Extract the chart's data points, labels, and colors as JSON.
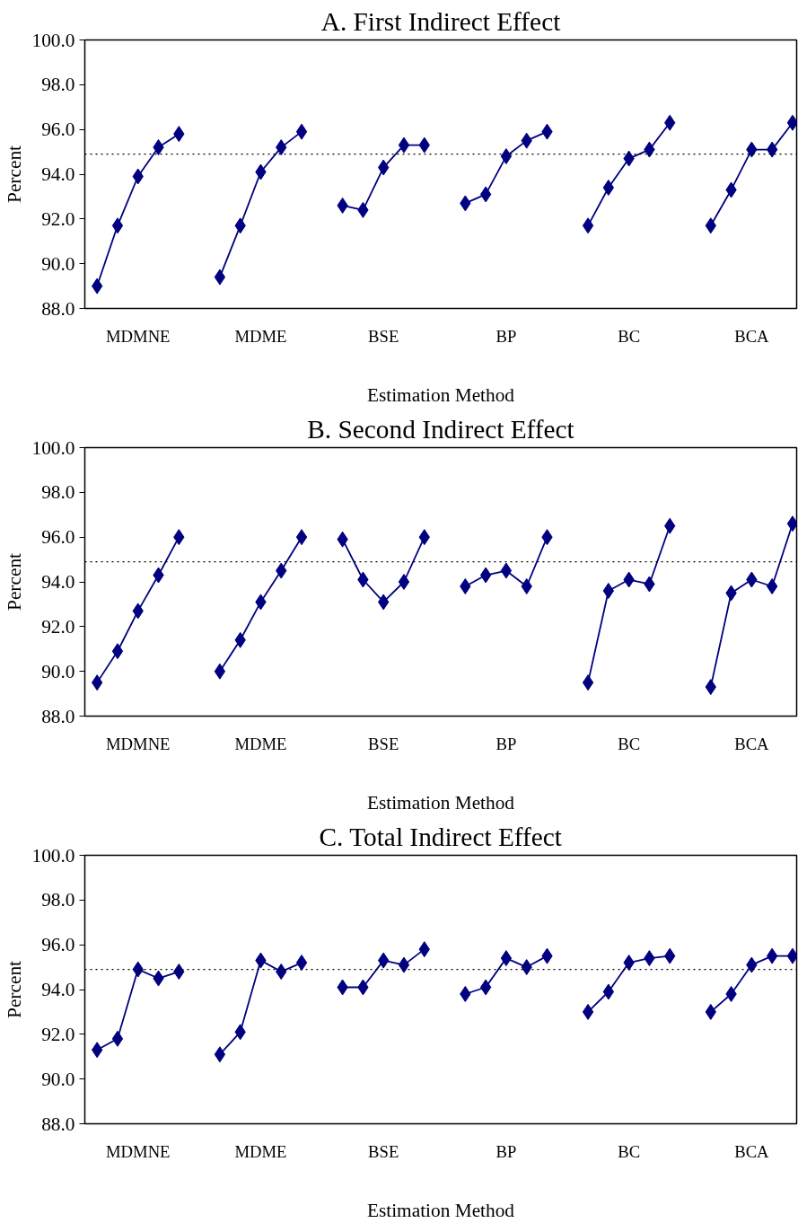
{
  "chart_data": [
    {
      "type": "line",
      "title": "A. First Indirect Effect",
      "xlabel": "Estimation Method",
      "ylabel": "Percent",
      "categories": [
        null,
        null,
        "MDMNE",
        null,
        null,
        null,
        null,
        null,
        "MDME",
        null,
        null,
        null,
        null,
        null,
        "BSE",
        null,
        null,
        null,
        null,
        null,
        "BP",
        null,
        null,
        null,
        null,
        null,
        "BC",
        null,
        null,
        null,
        null,
        null,
        "BCA",
        null,
        null
      ],
      "series": [
        {
          "color": "#000080",
          "values": [
            89.0,
            91.7,
            93.9,
            95.2,
            95.8,
            null,
            89.4,
            91.7,
            94.1,
            95.2,
            95.9,
            null,
            92.6,
            92.4,
            94.3,
            95.3,
            95.3,
            null,
            92.7,
            93.1,
            94.8,
            95.5,
            95.9,
            null,
            91.7,
            93.4,
            94.7,
            95.1,
            96.3,
            null,
            91.7,
            93.3,
            95.1,
            95.1,
            96.3
          ]
        }
      ],
      "ylim": [
        88,
        100
      ],
      "yticks": [
        {
          "value": 88,
          "label": "88.0"
        },
        {
          "value": 90,
          "label": "90.0"
        },
        {
          "value": 92,
          "label": "92.0"
        },
        {
          "value": 94,
          "label": "94.0"
        },
        {
          "value": 96,
          "label": "96.0"
        },
        {
          "value": 98,
          "label": "98.0"
        },
        {
          "value": 100,
          "label": "100.0"
        }
      ],
      "ref_lines": [
        {
          "axis": "y",
          "value": 94.9,
          "label": null,
          "color": "#000000",
          "line_style": "dotted"
        }
      ],
      "grid": false,
      "marker": "diamond",
      "line_style": "solid"
    },
    {
      "type": "line",
      "title": "B. Second Indirect Effect",
      "xlabel": "Estimation Method",
      "ylabel": "Percent",
      "categories": [
        null,
        null,
        "MDMNE",
        null,
        null,
        null,
        null,
        null,
        "MDME",
        null,
        null,
        null,
        null,
        null,
        "BSE",
        null,
        null,
        null,
        null,
        null,
        "BP",
        null,
        null,
        null,
        null,
        null,
        "BC",
        null,
        null,
        null,
        null,
        null,
        "BCA",
        null,
        null
      ],
      "series": [
        {
          "color": "#000080",
          "values": [
            89.5,
            90.9,
            92.7,
            94.3,
            96.0,
            null,
            90.0,
            91.4,
            93.1,
            94.5,
            96.0,
            null,
            95.9,
            94.1,
            93.1,
            94.0,
            96.0,
            null,
            93.8,
            94.3,
            94.5,
            93.8,
            96.0,
            null,
            89.5,
            93.6,
            94.1,
            93.9,
            96.5,
            null,
            89.3,
            93.5,
            94.1,
            93.8,
            96.6
          ]
        }
      ],
      "ylim": [
        88,
        100
      ],
      "yticks": [
        {
          "value": 88,
          "label": "88.0"
        },
        {
          "value": 90,
          "label": "90.0"
        },
        {
          "value": 92,
          "label": "92.0"
        },
        {
          "value": 94,
          "label": "94.0"
        },
        {
          "value": 96,
          "label": "96.0"
        },
        {
          "value": 98,
          "label": "98.0"
        },
        {
          "value": 100,
          "label": "100.0"
        }
      ],
      "ref_lines": [
        {
          "axis": "y",
          "value": 94.9,
          "label": null,
          "color": "#000000",
          "line_style": "dotted"
        }
      ],
      "grid": false,
      "marker": "diamond",
      "line_style": "solid"
    },
    {
      "type": "line",
      "title": "C. Total Indirect Effect",
      "xlabel": "Estimation Method",
      "ylabel": "Percent",
      "categories": [
        null,
        null,
        "MDMNE",
        null,
        null,
        null,
        null,
        null,
        "MDME",
        null,
        null,
        null,
        null,
        null,
        "BSE",
        null,
        null,
        null,
        null,
        null,
        "BP",
        null,
        null,
        null,
        null,
        null,
        "BC",
        null,
        null,
        null,
        null,
        null,
        "BCA",
        null,
        null
      ],
      "series": [
        {
          "color": "#000080",
          "values": [
            91.3,
            91.8,
            94.9,
            94.5,
            94.8,
            null,
            91.1,
            92.1,
            95.3,
            94.8,
            95.2,
            null,
            94.1,
            94.1,
            95.3,
            95.1,
            95.8,
            null,
            93.8,
            94.1,
            95.4,
            95.0,
            95.5,
            null,
            93.0,
            93.9,
            95.2,
            95.4,
            95.5,
            null,
            93.0,
            93.8,
            95.1,
            95.5,
            95.5
          ]
        }
      ],
      "ylim": [
        88,
        100
      ],
      "yticks": [
        {
          "value": 88,
          "label": "88.0"
        },
        {
          "value": 90,
          "label": "90.0"
        },
        {
          "value": 92,
          "label": "92.0"
        },
        {
          "value": 94,
          "label": "94.0"
        },
        {
          "value": 96,
          "label": "96.0"
        },
        {
          "value": 98,
          "label": "98.0"
        },
        {
          "value": 100,
          "label": "100.0"
        }
      ],
      "ref_lines": [
        {
          "axis": "y",
          "value": 94.9,
          "label": null,
          "color": "#000000",
          "line_style": "dotted"
        }
      ],
      "grid": false,
      "marker": "diamond",
      "line_style": "solid"
    }
  ]
}
